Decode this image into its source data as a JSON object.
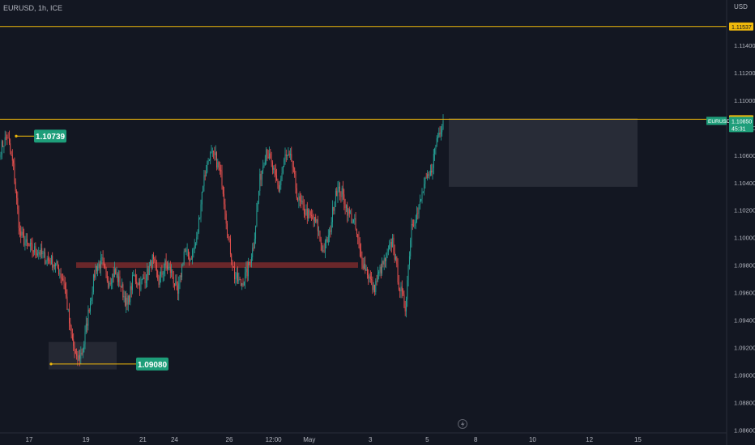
{
  "header": {
    "symbol_text": "EURUSD, 1h, ICE"
  },
  "axis": {
    "currency": "USD"
  },
  "colors": {
    "bg": "#131722",
    "up": "#26a69a",
    "down": "#ef5350",
    "hline": "#f0b90b",
    "label_green": "#1e9e7a",
    "text": "#b2b5be"
  },
  "chart_data": {
    "type": "candlestick",
    "symbol": "EURUSD",
    "timeframe": "1h",
    "y_ticks": [
      "1.11400",
      "1.11200",
      "1.11000",
      "1.10800",
      "1.10600",
      "1.10400",
      "1.10200",
      "1.10000",
      "1.09800",
      "1.09600",
      "1.09400",
      "1.09200",
      "1.09000",
      "1.08800",
      "1.08600"
    ],
    "y_tick_values": [
      1.114,
      1.112,
      1.11,
      1.108,
      1.106,
      1.104,
      1.102,
      1.1,
      1.098,
      1.096,
      1.094,
      1.092,
      1.09,
      1.088,
      1.086
    ],
    "x_ticks": [
      "17",
      "19",
      "21",
      "24",
      "26",
      "12:00",
      "May",
      "3",
      "5",
      "8",
      "10",
      "12",
      "15"
    ],
    "x_tick_index": [
      0,
      54,
      108,
      138,
      190,
      232,
      266,
      324,
      378,
      424,
      478,
      532,
      578
    ],
    "ylim": [
      1.0849,
      1.1173
    ],
    "horizontal_lines": [
      1.11537,
      1.10862
    ],
    "price_labels": [
      {
        "text": "1.11537",
        "value": 1.11537
      },
      {
        "text": "1.10862",
        "value": 1.10862
      },
      {
        "text": "1.10850",
        "value": 1.1085,
        "symbol": "EURUSD",
        "countdown": "45:31"
      }
    ],
    "annotations": [
      {
        "text": "1.10739",
        "value": 1.10739
      },
      {
        "text": "1.09080",
        "value": 1.0908
      }
    ],
    "zones": [
      {
        "name": "demand-zone",
        "y_top": 1.0924,
        "y_bottom": 1.0904
      },
      {
        "name": "resistance-band",
        "y_top": 1.0982,
        "y_bottom": 1.0978
      },
      {
        "name": "projection-box",
        "y_top": 1.1087,
        "y_bottom": 1.1037
      }
    ],
    "anchors": [
      1.1065,
      1.1074,
      1.1051,
      1.1003,
      1.0995,
      1.0991,
      1.099,
      1.0985,
      1.0983,
      1.0978,
      1.0968,
      1.0932,
      1.091,
      1.0918,
      1.095,
      1.0978,
      1.0982,
      1.0968,
      1.0975,
      1.0965,
      1.095,
      1.0972,
      1.0966,
      1.0972,
      1.0984,
      1.0968,
      1.098,
      1.0975,
      1.0958,
      1.099,
      1.0985,
      1.0998,
      1.104,
      1.106,
      1.1058,
      1.1042,
      1.1,
      1.0972,
      1.0966,
      1.0975,
      1.0995,
      1.1042,
      1.1065,
      1.105,
      1.1035,
      1.1059,
      1.1056,
      1.1028,
      1.102,
      1.1015,
      1.101,
      1.099,
      1.1002,
      1.1035,
      1.1032,
      1.1018,
      1.101,
      1.0985,
      1.0975,
      1.0962,
      1.0976,
      1.0985,
      1.0998,
      1.0966,
      1.0949,
      1.101,
      1.1018,
      1.1038,
      1.1046,
      1.1072,
      1.1085
    ]
  }
}
